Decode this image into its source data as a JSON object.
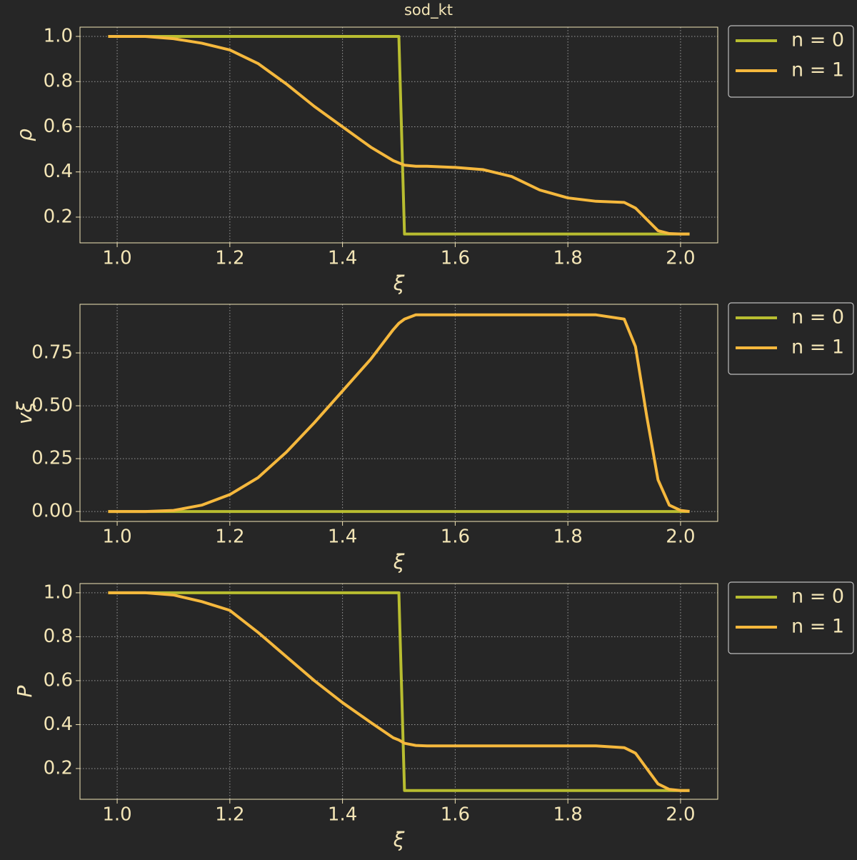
{
  "title": "sod_kt",
  "chart_data": [
    {
      "type": "line",
      "xlabel": "ξ",
      "ylabel": "ρ",
      "x": [
        0.984,
        1.05,
        1.1,
        1.15,
        1.2,
        1.25,
        1.3,
        1.35,
        1.4,
        1.45,
        1.49,
        1.5,
        1.51,
        1.53,
        1.55,
        1.6,
        1.65,
        1.7,
        1.75,
        1.8,
        1.85,
        1.9,
        1.92,
        1.94,
        1.96,
        1.98,
        2.0,
        2.016
      ],
      "series": [
        {
          "name": "n = 0",
          "color": "#b8bd30",
          "values": [
            1,
            1,
            1,
            1,
            1,
            1,
            1,
            1,
            1,
            1,
            1,
            1,
            0.125,
            0.125,
            0.125,
            0.125,
            0.125,
            0.125,
            0.125,
            0.125,
            0.125,
            0.125,
            0.125,
            0.125,
            0.125,
            0.125,
            0.125,
            0.125
          ]
        },
        {
          "name": "n = 1",
          "color": "#f5b83d",
          "values": [
            1,
            1,
            0.99,
            0.97,
            0.94,
            0.88,
            0.79,
            0.69,
            0.6,
            0.51,
            0.45,
            0.44,
            0.43,
            0.425,
            0.425,
            0.42,
            0.41,
            0.38,
            0.32,
            0.285,
            0.27,
            0.265,
            0.24,
            0.19,
            0.14,
            0.127,
            0.125,
            0.125
          ]
        }
      ],
      "xlim": [
        0.934,
        2.066
      ],
      "xticks": [
        {
          "value": 1,
          "label": "1.0"
        },
        1.2,
        1.4,
        1.6,
        1.8,
        {
          "value": 2,
          "label": "2.0"
        }
      ],
      "ylim": [
        0.086,
        1.041
      ],
      "yticks": [
        0.2,
        0.4,
        0.6,
        0.8,
        {
          "value": 1,
          "label": "1.0"
        }
      ],
      "grid": true,
      "legend": "outside-upper-right"
    },
    {
      "type": "line",
      "xlabel": "ξ",
      "ylabel": "vξ",
      "x": [
        0.984,
        1.05,
        1.1,
        1.15,
        1.2,
        1.25,
        1.3,
        1.35,
        1.4,
        1.45,
        1.49,
        1.5,
        1.51,
        1.53,
        1.55,
        1.6,
        1.65,
        1.7,
        1.75,
        1.8,
        1.85,
        1.9,
        1.92,
        1.94,
        1.96,
        1.98,
        2.0,
        2.016
      ],
      "series": [
        {
          "name": "n = 0",
          "color": "#b8bd30",
          "values": [
            0,
            0,
            0,
            0,
            0,
            0,
            0,
            0,
            0,
            0,
            0,
            0,
            0,
            0,
            0,
            0,
            0,
            0,
            0,
            0,
            0,
            0,
            0,
            0,
            0,
            0,
            0,
            0
          ]
        },
        {
          "name": "n = 1",
          "color": "#f5b83d",
          "values": [
            0,
            0,
            0.005,
            0.03,
            0.08,
            0.16,
            0.28,
            0.42,
            0.57,
            0.72,
            0.86,
            0.89,
            0.91,
            0.93,
            0.93,
            0.93,
            0.93,
            0.93,
            0.93,
            0.93,
            0.93,
            0.91,
            0.78,
            0.45,
            0.15,
            0.03,
            0.005,
            0
          ]
        }
      ],
      "xlim": [
        0.934,
        2.066
      ],
      "xticks": [
        {
          "value": 1,
          "label": "1.0"
        },
        1.2,
        1.4,
        1.6,
        1.8,
        {
          "value": 2,
          "label": "2.0"
        }
      ],
      "ylim": [
        -0.047,
        0.98
      ],
      "yticks": [
        {
          "value": 0,
          "label": "0.00"
        },
        {
          "value": 0.25,
          "label": "0.25"
        },
        {
          "value": 0.5,
          "label": "0.50"
        },
        {
          "value": 0.75,
          "label": "0.75"
        }
      ],
      "grid": true,
      "legend": "outside-upper-right"
    },
    {
      "type": "line",
      "xlabel": "ξ",
      "ylabel": "P",
      "x": [
        0.984,
        1.05,
        1.1,
        1.15,
        1.2,
        1.25,
        1.3,
        1.35,
        1.4,
        1.45,
        1.49,
        1.5,
        1.51,
        1.53,
        1.55,
        1.6,
        1.65,
        1.7,
        1.75,
        1.8,
        1.85,
        1.9,
        1.92,
        1.94,
        1.96,
        1.98,
        2.0,
        2.016
      ],
      "series": [
        {
          "name": "n = 0",
          "color": "#b8bd30",
          "values": [
            1,
            1,
            1,
            1,
            1,
            1,
            1,
            1,
            1,
            1,
            1,
            1,
            0.1,
            0.1,
            0.1,
            0.1,
            0.1,
            0.1,
            0.1,
            0.1,
            0.1,
            0.1,
            0.1,
            0.1,
            0.1,
            0.1,
            0.1,
            0.1
          ]
        },
        {
          "name": "n = 1",
          "color": "#f5b83d",
          "values": [
            1,
            1,
            0.99,
            0.96,
            0.92,
            0.82,
            0.71,
            0.6,
            0.5,
            0.41,
            0.34,
            0.33,
            0.315,
            0.305,
            0.303,
            0.303,
            0.303,
            0.303,
            0.303,
            0.303,
            0.303,
            0.295,
            0.27,
            0.2,
            0.13,
            0.105,
            0.1,
            0.1
          ]
        }
      ],
      "xlim": [
        0.934,
        2.066
      ],
      "xticks": [
        {
          "value": 1,
          "label": "1.0"
        },
        1.2,
        1.4,
        1.6,
        1.8,
        {
          "value": 2,
          "label": "2.0"
        }
      ],
      "ylim": [
        0.06,
        1.042
      ],
      "yticks": [
        0.2,
        0.4,
        0.6,
        0.8,
        {
          "value": 1,
          "label": "1.0"
        }
      ],
      "grid": true,
      "legend": "outside-upper-right"
    }
  ]
}
